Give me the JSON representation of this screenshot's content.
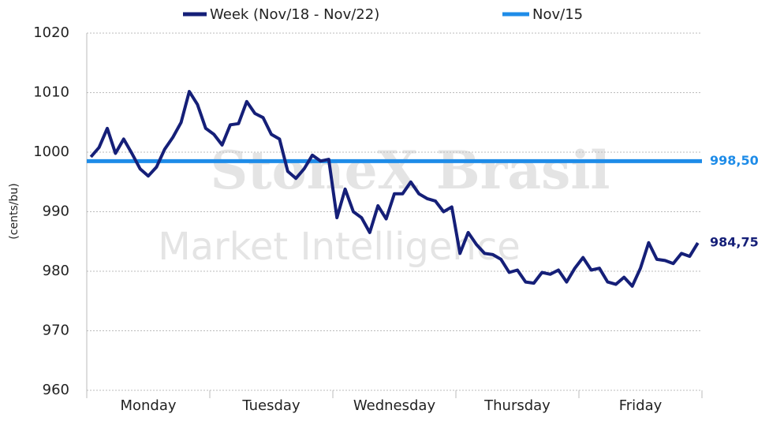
{
  "chart_data": {
    "type": "line",
    "y_label": "(cents/bu)",
    "watermark": [
      "StoneX Brasil",
      "Market Intelligence"
    ],
    "categories": [
      null,
      null,
      null,
      null,
      null,
      null,
      null,
      "Monday",
      null,
      null,
      null,
      null,
      null,
      null,
      null,
      null,
      null,
      null,
      null,
      null,
      null,
      null,
      "Tuesday",
      null,
      null,
      null,
      null,
      null,
      null,
      null,
      null,
      null,
      null,
      null,
      null,
      null,
      null,
      "Wednesday",
      null,
      null,
      null,
      null,
      null,
      null,
      null,
      null,
      null,
      null,
      null,
      null,
      null,
      null,
      "Thursday",
      null,
      null,
      null,
      null,
      null,
      null,
      null,
      null,
      null,
      null,
      null,
      null,
      null,
      null,
      "Friday",
      null,
      null,
      null,
      null,
      null,
      null,
      null
    ],
    "series": [
      {
        "name": "Week (Nov/18 - Nov/22)",
        "color": "#151f78",
        "values": [
          999.2,
          1000.8,
          1004.0,
          999.8,
          1002.2,
          999.8,
          997.2,
          996.0,
          997.5,
          1000.5,
          1002.5,
          1005.0,
          1010.2,
          1008.0,
          1004.0,
          1003.0,
          1001.2,
          1004.6,
          1004.8,
          1008.5,
          1006.5,
          1005.8,
          1003.0,
          1002.2,
          996.8,
          995.6,
          997.2,
          999.5,
          998.5,
          998.8,
          989.0,
          993.8,
          990.0,
          989.0,
          986.5,
          991.0,
          988.8,
          993.0,
          993.0,
          995.0,
          993.0,
          992.2,
          991.8,
          990.0,
          990.8,
          983.0,
          986.5,
          984.5,
          983.0,
          982.8,
          982.0,
          979.8,
          980.2,
          978.2,
          978.0,
          979.8,
          979.5,
          980.2,
          978.2,
          980.5,
          982.3,
          980.2,
          980.5,
          978.2,
          977.8,
          979.0,
          977.5,
          980.5,
          984.8,
          982.0,
          981.8,
          981.3,
          983.0,
          982.5,
          984.75
        ],
        "last_value_label": "984,75"
      }
    ],
    "hlines": [
      {
        "name": "Nov/15",
        "color": "#1e8ce8",
        "value": 998.5,
        "value_label": "998,50"
      }
    ],
    "ylim": [
      960,
      1020
    ],
    "yticks": [
      960,
      970,
      980,
      990,
      1000,
      1010,
      1020
    ],
    "grid": true
  }
}
